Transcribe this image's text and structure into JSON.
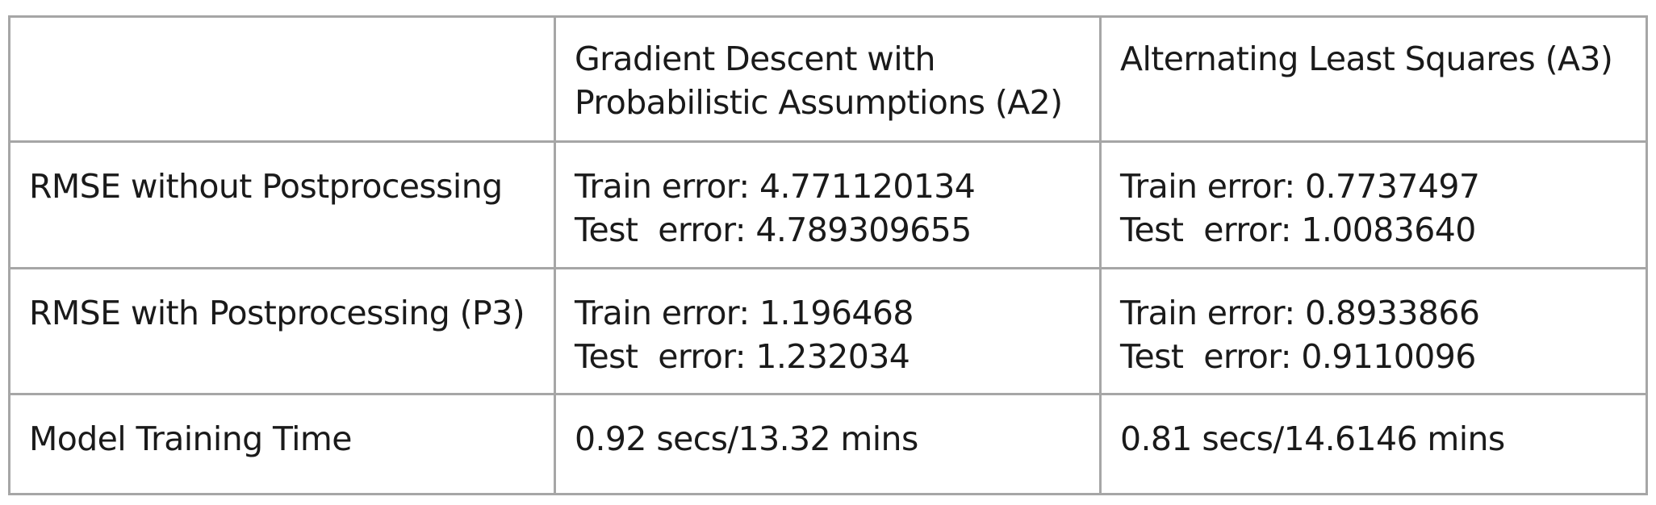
{
  "table": {
    "header": {
      "corner": "",
      "col_a2_line1": "Gradient Descent with",
      "col_a2_line2": "Probabilistic Assumptions (A2)",
      "col_a3": "Alternating Least Squares (A3)"
    },
    "rows": [
      {
        "label": "RMSE without Postprocessing",
        "a2": {
          "train": "Train error: 4.771120134",
          "test": "Test  error: 4.789309655"
        },
        "a3": {
          "train": "Train error: 0.7737497",
          "test": "Test  error: 1.0083640"
        }
      },
      {
        "label": "RMSE with Postprocessing (P3)",
        "a2": {
          "train": "Train error: 1.196468",
          "test": "Test  error: 1.232034"
        },
        "a3": {
          "train": "Train error: 0.8933866",
          "test": "Test  error: 0.9110096"
        }
      },
      {
        "label": "Model Training Time",
        "a2": {
          "value": "0.92 secs/13.32 mins"
        },
        "a3": {
          "value": "0.81 secs/14.6146 mins"
        }
      }
    ]
  }
}
